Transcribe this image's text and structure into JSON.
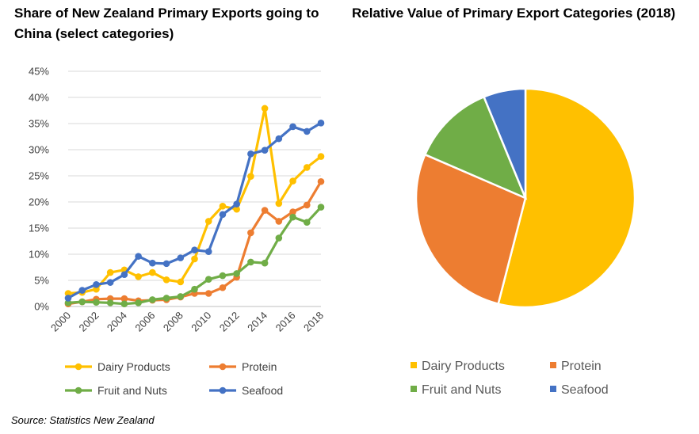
{
  "source": "Source: Statistics New Zealand",
  "chart_data": [
    {
      "type": "line",
      "title": "Share of New Zealand Primary Exports going to China (select categories)",
      "x": [
        2000,
        2001,
        2002,
        2003,
        2004,
        2005,
        2006,
        2007,
        2008,
        2009,
        2010,
        2011,
        2012,
        2013,
        2014,
        2015,
        2016,
        2017,
        2018
      ],
      "x_tick_labels": [
        "2000",
        "2002",
        "2004",
        "2006",
        "2008",
        "2010",
        "2012",
        "2014",
        "2016",
        "2018"
      ],
      "y_tick_labels": [
        "0%",
        "5%",
        "10%",
        "15%",
        "20%",
        "25%",
        "30%",
        "35%",
        "40%",
        "45%"
      ],
      "ylim": [
        0,
        45
      ],
      "grid": "horizontal",
      "legend_position": "bottom",
      "series": [
        {
          "name": "Dairy Products",
          "color": "#FFC000",
          "values": [
            2.5,
            2.7,
            3.3,
            6.5,
            7.0,
            5.7,
            6.5,
            5.1,
            4.7,
            9.1,
            16.3,
            19.2,
            18.6,
            24.9,
            37.9,
            19.7,
            24.0,
            26.6,
            28.7
          ]
        },
        {
          "name": "Protein",
          "color": "#ED7D31",
          "values": [
            0.5,
            0.9,
            1.4,
            1.5,
            1.5,
            1.1,
            1.2,
            1.3,
            1.8,
            2.5,
            2.5,
            3.6,
            5.6,
            14.1,
            18.4,
            16.3,
            18.1,
            19.4,
            23.9
          ]
        },
        {
          "name": "Fruit and Nuts",
          "color": "#70AD47",
          "values": [
            0.7,
            0.9,
            0.8,
            0.7,
            0.5,
            0.7,
            1.3,
            1.6,
            1.9,
            3.3,
            5.2,
            5.9,
            6.3,
            8.5,
            8.3,
            13.1,
            17.1,
            16.1,
            19.0
          ]
        },
        {
          "name": "Seafood",
          "color": "#4472C4",
          "values": [
            1.6,
            3.1,
            4.2,
            4.6,
            6.1,
            9.6,
            8.3,
            8.2,
            9.3,
            10.8,
            10.5,
            17.6,
            19.6,
            29.2,
            29.9,
            32.1,
            34.4,
            33.5,
            35.1
          ]
        }
      ]
    },
    {
      "type": "pie",
      "title": "Relative Value of Primary Export Categories (2018)",
      "legend_position": "bottom",
      "categories": [
        "Dairy Products",
        "Protein",
        "Fruit and Nuts",
        "Seafood"
      ],
      "values": [
        54.0,
        27.5,
        12.3,
        6.2
      ],
      "colors": [
        "#FFC000",
        "#ED7D31",
        "#70AD47",
        "#4472C4"
      ]
    }
  ]
}
